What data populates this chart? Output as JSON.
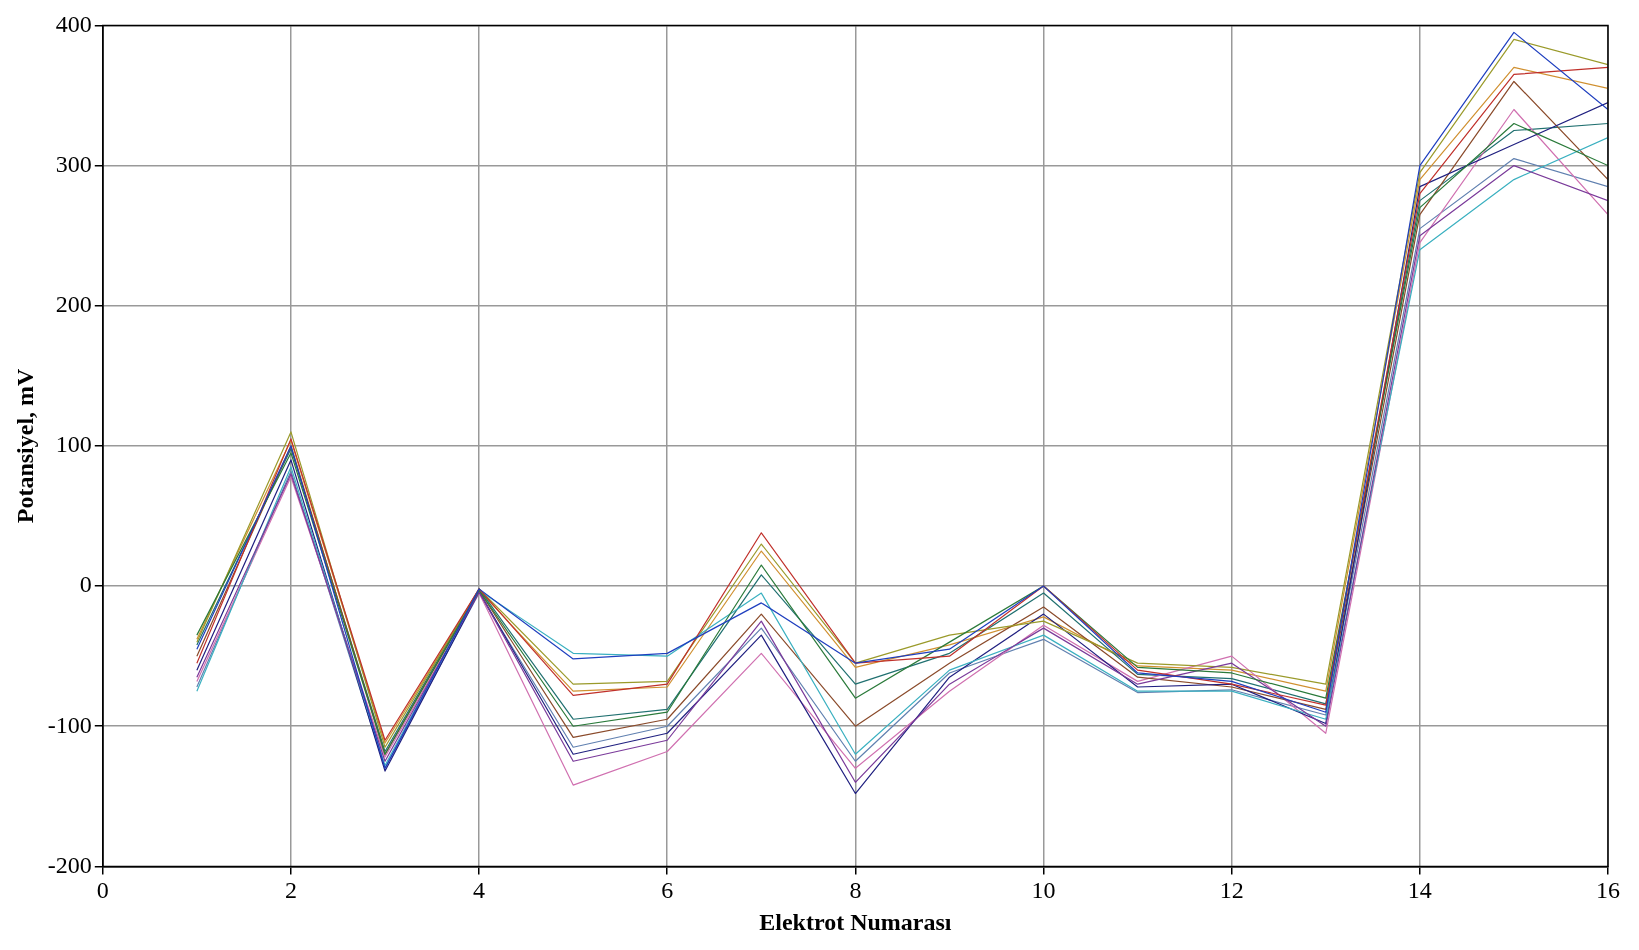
{
  "chart_data": {
    "type": "line",
    "xlabel": "Elektrot Numarası",
    "ylabel": "Potansiyel, mV",
    "x": [
      1,
      2,
      3,
      4,
      5,
      6,
      7,
      8,
      9,
      10,
      11,
      12,
      13,
      14,
      15,
      16
    ],
    "xlim": [
      0,
      16
    ],
    "xticks": [
      0,
      2,
      4,
      6,
      8,
      10,
      12,
      14,
      16
    ],
    "ylim": [
      -200,
      400
    ],
    "yticks": [
      -200,
      -100,
      0,
      100,
      200,
      300,
      400
    ],
    "grid": true,
    "legend": false,
    "marker": "none",
    "line_style": "solid",
    "series": [
      {
        "color": "#1f3fbf",
        "values": [
          -45,
          100,
          -130,
          -2,
          -52,
          -48,
          -12,
          -55,
          -45,
          0,
          -62,
          -68,
          -90,
          300,
          395,
          340
        ]
      },
      {
        "color": "#c0302a",
        "values": [
          -55,
          105,
          -110,
          -2,
          -78,
          -70,
          38,
          -55,
          -50,
          0,
          -60,
          -70,
          -85,
          280,
          365,
          370
        ]
      },
      {
        "color": "#2a7a3a",
        "values": [
          -35,
          95,
          -120,
          -3,
          -100,
          -90,
          15,
          -80,
          -40,
          0,
          -58,
          -62,
          -80,
          270,
          330,
          300
        ]
      },
      {
        "color": "#7a3a9a",
        "values": [
          -65,
          80,
          -125,
          -4,
          -125,
          -110,
          -25,
          -140,
          -70,
          -30,
          -70,
          -55,
          -100,
          250,
          300,
          275
        ]
      },
      {
        "color": "#3ab0c0",
        "values": [
          -75,
          85,
          -128,
          -3,
          -48,
          -50,
          -5,
          -120,
          -60,
          -35,
          -75,
          -75,
          -95,
          240,
          290,
          320
        ]
      },
      {
        "color": "#9a9a2a",
        "values": [
          -40,
          110,
          -115,
          -2,
          -70,
          -68,
          30,
          -55,
          -35,
          -25,
          -55,
          -58,
          -70,
          295,
          390,
          372
        ]
      },
      {
        "color": "#202080",
        "values": [
          -60,
          90,
          -132,
          -4,
          -120,
          -105,
          -35,
          -148,
          -65,
          -20,
          -72,
          -70,
          -98,
          285,
          315,
          345
        ]
      },
      {
        "color": "#8a4a2a",
        "values": [
          -50,
          100,
          -120,
          -3,
          -108,
          -95,
          -20,
          -100,
          -55,
          -15,
          -65,
          -72,
          -88,
          265,
          360,
          290
        ]
      },
      {
        "color": "#d070b0",
        "values": [
          -68,
          78,
          -122,
          -5,
          -142,
          -118,
          -48,
          -130,
          -75,
          -28,
          -68,
          -50,
          -105,
          245,
          340,
          265
        ]
      },
      {
        "color": "#207070",
        "values": [
          -42,
          98,
          -118,
          -2,
          -95,
          -88,
          8,
          -70,
          -48,
          -5,
          -63,
          -66,
          -84,
          275,
          325,
          330
        ]
      },
      {
        "color": "#d09030",
        "values": [
          -38,
          104,
          -112,
          -3,
          -75,
          -72,
          25,
          -58,
          -42,
          -22,
          -57,
          -60,
          -75,
          290,
          370,
          355
        ]
      },
      {
        "color": "#6080b0",
        "values": [
          -72,
          82,
          -130,
          -5,
          -115,
          -100,
          -30,
          -125,
          -62,
          -38,
          -76,
          -74,
          -92,
          255,
          305,
          285
        ]
      }
    ]
  }
}
